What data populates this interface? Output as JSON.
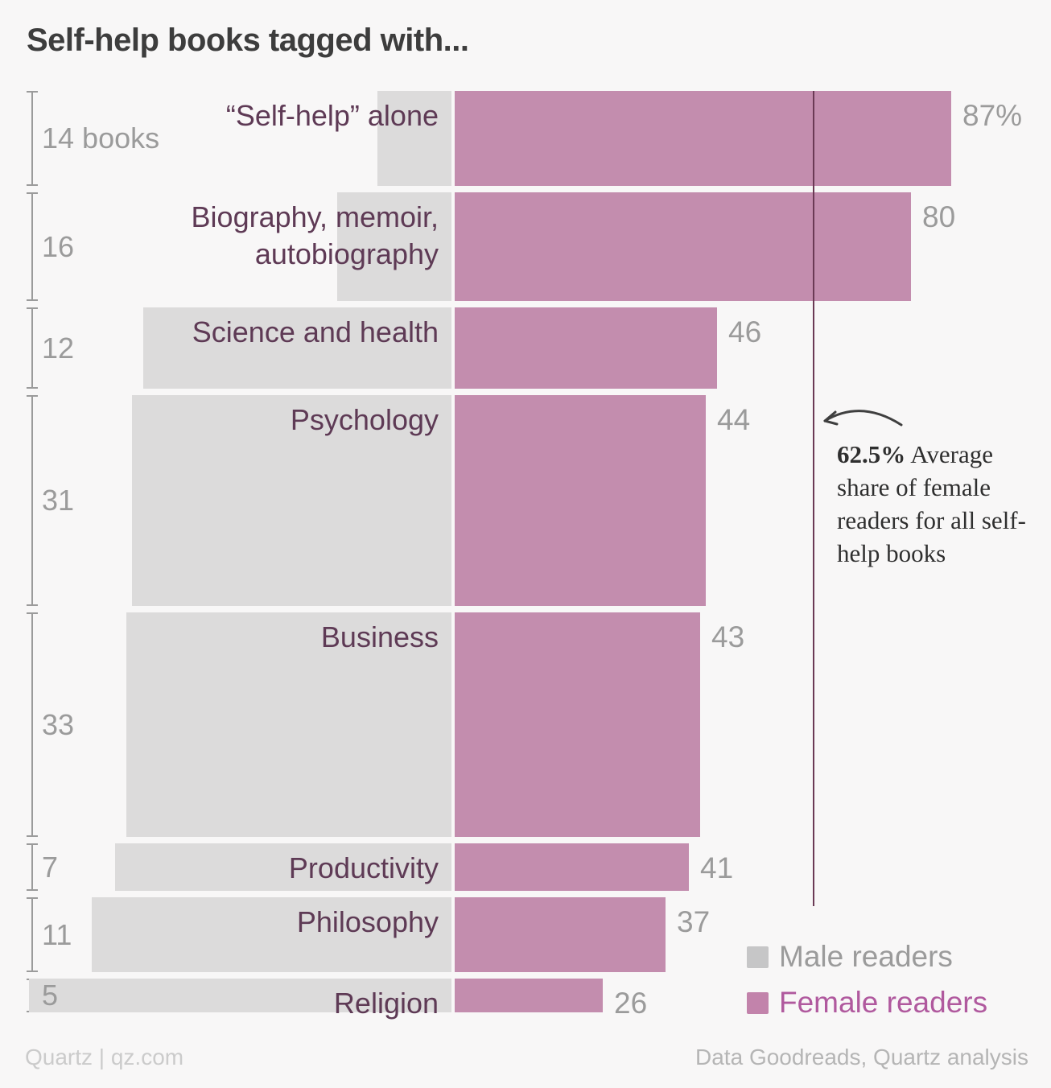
{
  "chart_data": {
    "type": "bar",
    "variant": "diverging-variable-height-bars",
    "title": "Self-help books tagged with...",
    "units": "% of readers",
    "row_height_encodes": "number of books",
    "categories": [
      "“Self-help” alone",
      "Biography, memoir, autobiography",
      "Science and health",
      "Psychology",
      "Business",
      "Productivity",
      "Philosophy",
      "Religion"
    ],
    "rows": [
      {
        "category": "“Self-help” alone",
        "count_label": "14 books",
        "books": 14,
        "female_pct": 87,
        "male_pct": 13,
        "value_label": "87%"
      },
      {
        "category": "Biography, memoir, autobiography",
        "count_label": "16",
        "books": 16,
        "female_pct": 80,
        "male_pct": 20,
        "value_label": "80"
      },
      {
        "category": "Science and health",
        "count_label": "12",
        "books": 12,
        "female_pct": 46,
        "male_pct": 54,
        "value_label": "46"
      },
      {
        "category": "Psychology",
        "count_label": "31",
        "books": 31,
        "female_pct": 44,
        "male_pct": 56,
        "value_label": "44"
      },
      {
        "category": "Business",
        "count_label": "33",
        "books": 33,
        "female_pct": 43,
        "male_pct": 57,
        "value_label": "43"
      },
      {
        "category": "Productivity",
        "count_label": "7",
        "books": 7,
        "female_pct": 41,
        "male_pct": 59,
        "value_label": "41"
      },
      {
        "category": "Philosophy",
        "count_label": "11",
        "books": 11,
        "female_pct": 37,
        "male_pct": 63,
        "value_label": "37"
      },
      {
        "category": "Religion",
        "count_label": "5",
        "books": 5,
        "female_pct": 26,
        "male_pct": 74,
        "value_label": "26"
      }
    ],
    "average_line": {
      "value": 62.5,
      "bold": "62.5%",
      "text": " Average share of female readers for all self-help books"
    },
    "legend": {
      "male": "Male readers",
      "female": "Female readers"
    },
    "legend_position": "bottom-right",
    "grid": false
  },
  "footer": {
    "left": "Quartz | qz.com",
    "right": "Data Goodreads, Quartz analysis"
  },
  "colors": {
    "background": "#f8f7f7",
    "title_text": "#3d3d3d",
    "category_text": "#5e3a55",
    "muted_text": "#9b9b9b",
    "axis_gray": "#9b9b9b",
    "male_bar": "#dcdbdb",
    "female_bar": "#c38dae",
    "male_swatch": "#c6c6c7",
    "female_swatch": "#c283ab",
    "female_legend_text": "#b0599e",
    "avg_line": "#6b3a55",
    "annotation_text": "#2f2f2f",
    "arrow": "#3f3f3f",
    "footer_left_text": "#cbcbcb",
    "footer_right_text": "#b5b5b5"
  }
}
